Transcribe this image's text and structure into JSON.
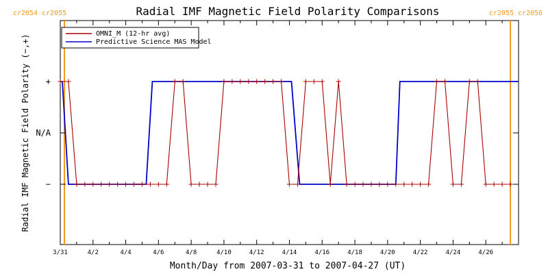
{
  "chart_data": {
    "type": "line",
    "title": "Radial IMF Magnetic Field Polarity Comparisons",
    "xlabel": "Month/Day from 2007-03-31 to 2007-04-27 (UT)",
    "ylabel": "Radial IMF Magnetic Field Polarity (−,+)",
    "x_range": [
      "2007-03-31T00:00",
      "2007-04-28T00:00"
    ],
    "x_tick_labels": [
      "3/31",
      "4/2",
      "4/4",
      "4/6",
      "4/8",
      "4/10",
      "4/12",
      "4/14",
      "4/16",
      "4/18",
      "4/20",
      "4/22",
      "4/24",
      "4/26"
    ],
    "y_categories": [
      "−",
      "N/A",
      "+"
    ],
    "y_category_values": [
      -1,
      0,
      1
    ],
    "grid": false,
    "legend_position": "top-left",
    "carrington_rotations": [
      {
        "label": "cr2054 cr2055",
        "date": "2007-03-31T06:00",
        "side": "left"
      },
      {
        "label": "cr2055 cr2056",
        "date": "2007-04-27T12:00",
        "side": "right"
      }
    ],
    "colors": {
      "omni": "#aa0000",
      "mas": "#0000cc",
      "cr_line": "#f39a1e"
    },
    "series": [
      {
        "name": "OMNI_M (12-hr avg)",
        "marker": "plus",
        "points": [
          [
            "2007-03-31T00:00",
            1
          ],
          [
            "2007-03-31T12:00",
            1
          ],
          [
            "2007-04-01T00:00",
            -1
          ],
          [
            "2007-04-01T12:00",
            -1
          ],
          [
            "2007-04-02T00:00",
            -1
          ],
          [
            "2007-04-02T12:00",
            -1
          ],
          [
            "2007-04-03T00:00",
            -1
          ],
          [
            "2007-04-03T12:00",
            -1
          ],
          [
            "2007-04-04T00:00",
            -1
          ],
          [
            "2007-04-04T12:00",
            -1
          ],
          [
            "2007-04-05T00:00",
            -1
          ],
          [
            "2007-04-05T12:00",
            -1
          ],
          [
            "2007-04-06T00:00",
            -1
          ],
          [
            "2007-04-06T12:00",
            -1
          ],
          [
            "2007-04-07T00:00",
            1
          ],
          [
            "2007-04-07T12:00",
            1
          ],
          [
            "2007-04-08T00:00",
            -1
          ],
          [
            "2007-04-08T12:00",
            -1
          ],
          [
            "2007-04-09T00:00",
            -1
          ],
          [
            "2007-04-09T12:00",
            -1
          ],
          [
            "2007-04-10T00:00",
            1
          ],
          [
            "2007-04-10T12:00",
            1
          ],
          [
            "2007-04-11T00:00",
            1
          ],
          [
            "2007-04-11T12:00",
            1
          ],
          [
            "2007-04-12T00:00",
            1
          ],
          [
            "2007-04-12T12:00",
            1
          ],
          [
            "2007-04-13T00:00",
            1
          ],
          [
            "2007-04-13T12:00",
            1
          ],
          [
            "2007-04-14T00:00",
            -1
          ],
          [
            "2007-04-14T12:00",
            -1
          ],
          [
            "2007-04-15T00:00",
            1
          ],
          [
            "2007-04-15T12:00",
            1
          ],
          [
            "2007-04-16T00:00",
            1
          ],
          [
            "2007-04-16T12:00",
            -1
          ],
          [
            "2007-04-17T00:00",
            1
          ],
          [
            "2007-04-17T12:00",
            -1
          ],
          [
            "2007-04-18T00:00",
            -1
          ],
          [
            "2007-04-18T12:00",
            -1
          ],
          [
            "2007-04-19T00:00",
            -1
          ],
          [
            "2007-04-19T12:00",
            -1
          ],
          [
            "2007-04-20T00:00",
            -1
          ],
          [
            "2007-04-20T12:00",
            -1
          ],
          [
            "2007-04-21T00:00",
            -1
          ],
          [
            "2007-04-21T12:00",
            -1
          ],
          [
            "2007-04-22T00:00",
            -1
          ],
          [
            "2007-04-22T12:00",
            -1
          ],
          [
            "2007-04-23T00:00",
            1
          ],
          [
            "2007-04-23T12:00",
            1
          ],
          [
            "2007-04-24T00:00",
            -1
          ],
          [
            "2007-04-24T12:00",
            -1
          ],
          [
            "2007-04-25T00:00",
            1
          ],
          [
            "2007-04-25T12:00",
            1
          ],
          [
            "2007-04-26T00:00",
            -1
          ],
          [
            "2007-04-26T12:00",
            -1
          ],
          [
            "2007-04-27T00:00",
            -1
          ],
          [
            "2007-04-27T12:00",
            -1
          ]
        ]
      },
      {
        "name": "Predictive Science MAS Model",
        "marker": "none",
        "points": [
          [
            "2007-03-31T00:00",
            1
          ],
          [
            "2007-03-31T03:00",
            1
          ],
          [
            "2007-03-31T12:00",
            -1
          ],
          [
            "2007-04-05T06:00",
            -1
          ],
          [
            "2007-04-05T15:00",
            1
          ],
          [
            "2007-04-14T03:00",
            1
          ],
          [
            "2007-04-14T15:00",
            -1
          ],
          [
            "2007-04-20T12:00",
            -1
          ],
          [
            "2007-04-20T18:00",
            1
          ],
          [
            "2007-04-28T00:00",
            1
          ]
        ]
      }
    ]
  }
}
